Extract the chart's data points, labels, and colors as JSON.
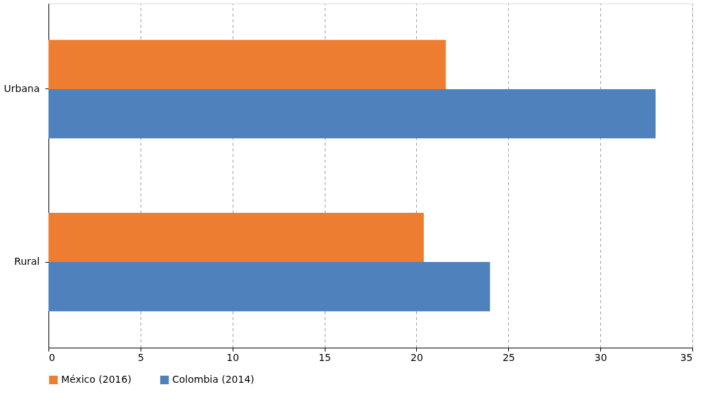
{
  "chart_data": {
    "type": "bar",
    "orientation": "horizontal",
    "categories": [
      "Urbana",
      "Rural"
    ],
    "series": [
      {
        "name": "México (2016)",
        "color": "#ed7d31",
        "values": [
          21.6,
          20.4
        ]
      },
      {
        "name": "Colombia (2014)",
        "color": "#4f81bd",
        "values": [
          33.0,
          24.0
        ]
      }
    ],
    "xlim": [
      0,
      35
    ],
    "xticks": [
      0,
      5,
      10,
      15,
      20,
      25,
      30,
      35
    ],
    "grid": "x",
    "legend": "bottom"
  }
}
